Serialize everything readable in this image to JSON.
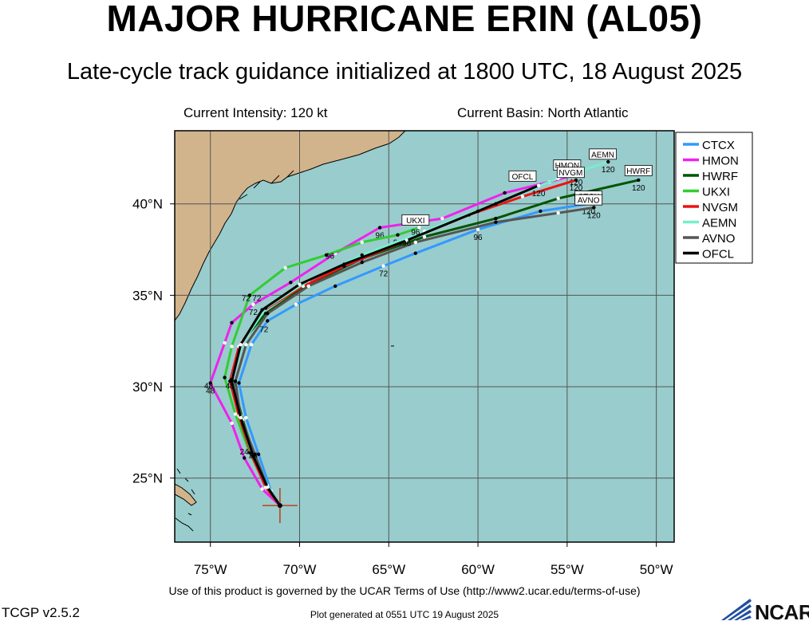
{
  "header": {
    "title": "MAJOR HURRICANE ERIN (AL05)",
    "subtitle": "Late-cycle track guidance initialized at 1800 UTC, 18 August 2025",
    "current_intensity": "Current Intensity: 120 kt",
    "current_basin": "Current Basin: North Atlantic"
  },
  "colors": {
    "ocean": "#99cccc",
    "land": "#d2b48c",
    "grid": "#555555",
    "initial_marker": "#cc2200"
  },
  "map": {
    "lon_labels": [
      "75°W",
      "70°W",
      "65°W",
      "60°W",
      "55°W",
      "50°W"
    ],
    "lat_labels": [
      "40°N",
      "35°N",
      "30°N",
      "25°N"
    ],
    "initial_position": {
      "lon": -71.1,
      "lat": 23.5
    }
  },
  "legend": [
    {
      "name": "CTCX",
      "color": "#3399ff"
    },
    {
      "name": "HMON",
      "color": "#ee22ee"
    },
    {
      "name": "HWRF",
      "color": "#005500"
    },
    {
      "name": "UKXI",
      "color": "#33cc33"
    },
    {
      "name": "NVGM",
      "color": "#ee1111"
    },
    {
      "name": "AEMN",
      "color": "#77eecc"
    },
    {
      "name": "AVNO",
      "color": "#555555"
    },
    {
      "name": "OFCL",
      "color": "#000000"
    }
  ],
  "chart_data": {
    "type": "line",
    "xlabel": "",
    "ylabel": "",
    "xlim": [
      -77,
      -49
    ],
    "ylim": [
      21.5,
      44
    ],
    "series": [
      {
        "name": "CTCX",
        "color": "#3399ff",
        "width": 3,
        "points": [
          [
            -71.1,
            23.5
          ],
          [
            -71.6,
            24.3
          ],
          [
            -72.3,
            26.3
          ],
          [
            -73.0,
            28.3
          ],
          [
            -73.4,
            30.2
          ],
          [
            -72.7,
            32.3
          ],
          [
            -71.8,
            33.6
          ],
          [
            -70.2,
            34.5
          ],
          [
            -68.0,
            35.5
          ],
          [
            -65.3,
            36.6
          ],
          [
            -63.5,
            37.3
          ],
          [
            -60.0,
            38.6
          ],
          [
            -56.5,
            39.6
          ],
          [
            -53.8,
            40.0
          ]
        ],
        "labels": [
          {
            "text": "72",
            "at": 9
          },
          {
            "text": "96",
            "at": 11
          },
          {
            "text": "120",
            "at": 13
          }
        ]
      },
      {
        "name": "HMON",
        "color": "#ee22ee",
        "width": 3,
        "points": [
          [
            -71.1,
            23.5
          ],
          [
            -72.1,
            24.4
          ],
          [
            -73.1,
            26.1
          ],
          [
            -73.8,
            28.0
          ],
          [
            -75.0,
            30.2
          ],
          [
            -74.2,
            32.4
          ],
          [
            -73.8,
            33.5
          ],
          [
            -72.6,
            34.5
          ],
          [
            -70.5,
            35.7
          ],
          [
            -68.0,
            37.3
          ],
          [
            -65.5,
            38.7
          ],
          [
            -62.0,
            39.2
          ],
          [
            -58.5,
            40.6
          ],
          [
            -56.0,
            41.2
          ],
          [
            -54.5,
            41.6
          ]
        ],
        "labels": [
          {
            "text": "48",
            "at": 4
          },
          {
            "text": "72",
            "at": 7
          },
          {
            "text": "96",
            "at": 10
          },
          {
            "text": "120",
            "at": 14
          }
        ]
      },
      {
        "name": "HWRF",
        "color": "#005500",
        "width": 3,
        "points": [
          [
            -71.1,
            23.5
          ],
          [
            -71.8,
            24.4
          ],
          [
            -72.6,
            26.4
          ],
          [
            -73.2,
            28.2
          ],
          [
            -73.8,
            30.5
          ],
          [
            -73.2,
            32.5
          ],
          [
            -71.9,
            34.0
          ],
          [
            -69.5,
            35.6
          ],
          [
            -66.5,
            37.0
          ],
          [
            -63.0,
            38.2
          ],
          [
            -59.0,
            39.2
          ],
          [
            -55.5,
            40.3
          ],
          [
            -51.0,
            41.3
          ]
        ],
        "labels": [
          {
            "text": "120",
            "at": 12
          }
        ]
      },
      {
        "name": "UKXI",
        "color": "#33cc33",
        "width": 3,
        "points": [
          [
            -71.1,
            23.5
          ],
          [
            -71.9,
            24.6
          ],
          [
            -72.8,
            26.4
          ],
          [
            -73.6,
            28.5
          ],
          [
            -74.2,
            30.5
          ],
          [
            -73.8,
            32.2
          ],
          [
            -72.8,
            35.0
          ],
          [
            -70.8,
            36.5
          ],
          [
            -68.5,
            37.2
          ],
          [
            -66.5,
            37.9
          ],
          [
            -64.5,
            38.3
          ],
          [
            -63.3,
            38.7
          ]
        ],
        "labels": [
          {
            "text": "96",
            "at": 10
          }
        ]
      },
      {
        "name": "NVGM",
        "color": "#ee1111",
        "width": 3,
        "points": [
          [
            -71.1,
            23.5
          ],
          [
            -71.9,
            24.5
          ],
          [
            -72.7,
            26.3
          ],
          [
            -73.4,
            28.4
          ],
          [
            -73.9,
            30.3
          ],
          [
            -73.4,
            32.2
          ],
          [
            -72.0,
            34.2
          ],
          [
            -69.8,
            35.5
          ],
          [
            -67.5,
            36.6
          ],
          [
            -64.0,
            38.0
          ],
          [
            -60.5,
            39.4
          ],
          [
            -57.5,
            40.4
          ],
          [
            -54.5,
            41.3
          ]
        ],
        "labels": [
          {
            "text": "120",
            "at": 12
          }
        ]
      },
      {
        "name": "AEMN",
        "color": "#77eecc",
        "width": 3,
        "points": [
          [
            -71.1,
            23.5
          ],
          [
            -71.8,
            24.6
          ],
          [
            -72.7,
            26.4
          ],
          [
            -73.3,
            28.4
          ],
          [
            -73.8,
            30.4
          ],
          [
            -73.2,
            32.4
          ],
          [
            -71.9,
            34.3
          ],
          [
            -69.5,
            35.8
          ],
          [
            -66.5,
            37.2
          ],
          [
            -63.0,
            38.5
          ],
          [
            -59.0,
            40.0
          ],
          [
            -55.5,
            41.4
          ],
          [
            -52.7,
            42.3
          ]
        ],
        "labels": [
          {
            "text": "120",
            "at": 12
          }
        ]
      },
      {
        "name": "AVNO",
        "color": "#555555",
        "width": 3,
        "points": [
          [
            -71.1,
            23.5
          ],
          [
            -71.8,
            24.5
          ],
          [
            -72.5,
            26.3
          ],
          [
            -73.3,
            28.3
          ],
          [
            -73.6,
            30.3
          ],
          [
            -73.0,
            32.3
          ],
          [
            -71.8,
            34.0
          ],
          [
            -69.5,
            35.5
          ],
          [
            -66.5,
            36.8
          ],
          [
            -63.5,
            37.9
          ],
          [
            -59.0,
            39.0
          ],
          [
            -55.5,
            39.5
          ],
          [
            -53.5,
            39.8
          ]
        ],
        "labels": [
          {
            "text": "120",
            "at": 12
          }
        ]
      },
      {
        "name": "OFCL",
        "color": "#000000",
        "width": 3,
        "points": [
          [
            -71.1,
            23.5
          ],
          [
            -71.8,
            24.5
          ],
          [
            -72.6,
            26.2
          ],
          [
            -73.3,
            28.3
          ],
          [
            -73.8,
            30.3
          ],
          [
            -73.3,
            32.3
          ],
          [
            -72.1,
            34.2
          ],
          [
            -70.0,
            35.6
          ],
          [
            -67.5,
            36.7
          ],
          [
            -64.0,
            38.0
          ],
          [
            -60.0,
            39.6
          ],
          [
            -56.6,
            41.0
          ]
        ],
        "labels": [
          {
            "text": "120",
            "at": 11
          }
        ]
      }
    ],
    "boxed_labels": [
      {
        "text": "OFCL",
        "lon": -57.5,
        "lat": 41.5
      },
      {
        "text": "HMON",
        "lon": -55.0,
        "lat": 42.1
      },
      {
        "text": "NVGM",
        "lon": -54.8,
        "lat": 41.7
      },
      {
        "text": "AEMN",
        "lon": -53.0,
        "lat": 42.7
      },
      {
        "text": "HWRF",
        "lon": -51.0,
        "lat": 41.8
      },
      {
        "text": "CTCX",
        "lon": -53.8,
        "lat": 40.4
      },
      {
        "text": "AVNO",
        "lon": -53.8,
        "lat": 40.2
      },
      {
        "text": "UKXI",
        "lon": -63.5,
        "lat": 39.1
      }
    ],
    "hour_labels": [
      {
        "text": "24",
        "lon": -73.1,
        "lat": 26.3
      },
      {
        "text": "24",
        "lon": -72.6,
        "lat": 26.1
      },
      {
        "text": "48",
        "lon": -75.1,
        "lat": 29.9
      },
      {
        "text": "48",
        "lon": -73.9,
        "lat": 29.9
      },
      {
        "text": "72",
        "lon": -73.0,
        "lat": 34.7
      },
      {
        "text": "72",
        "lon": -72.4,
        "lat": 34.7
      },
      {
        "text": "72",
        "lon": -72.0,
        "lat": 33.0
      },
      {
        "text": "96",
        "lon": -68.3,
        "lat": 37.0
      },
      {
        "text": "96",
        "lon": -64.0,
        "lat": 37.7
      },
      {
        "text": "96",
        "lon": -63.5,
        "lat": 38.3
      }
    ]
  },
  "footer": {
    "terms": "Use of this product is governed by the UCAR Terms of Use (http://www2.ucar.edu/terms-of-use)",
    "version": "TCGP v2.5.2",
    "generated": "Plot generated at 0551 UTC   19 August 2025",
    "logo_text": "NCAR"
  }
}
